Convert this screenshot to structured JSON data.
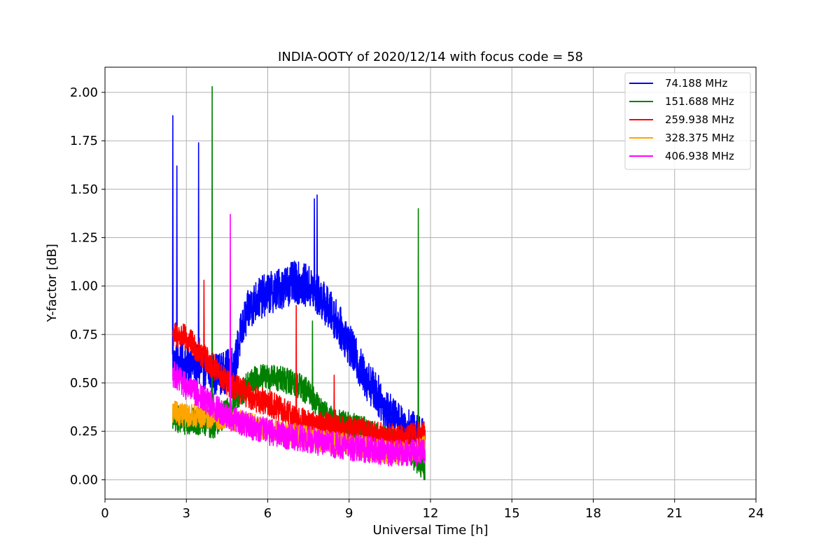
{
  "chart_data": {
    "type": "line",
    "title": "INDIA-OOTY of 2020/12/14 with focus code = 58",
    "xlabel": "Universal Time [h]",
    "ylabel": "Y-factor [dB]",
    "xlim": [
      0,
      24
    ],
    "ylim": [
      -0.1,
      2.13
    ],
    "xticks": [
      0,
      3,
      6,
      9,
      12,
      15,
      18,
      21,
      24
    ],
    "xtick_labels": [
      "0",
      "3",
      "6",
      "9",
      "12",
      "15",
      "18",
      "21",
      "24"
    ],
    "yticks": [
      0.0,
      0.25,
      0.5,
      0.75,
      1.0,
      1.25,
      1.5,
      1.75,
      2.0
    ],
    "ytick_labels": [
      "0.00",
      "0.25",
      "0.50",
      "0.75",
      "1.00",
      "1.25",
      "1.50",
      "1.75",
      "2.00"
    ],
    "grid": true,
    "legend_position": "top-right",
    "series": [
      {
        "name": "74.188 MHz",
        "color": "#0000ff",
        "noise": 0.11,
        "x": [
          2.5,
          2.8,
          3.2,
          3.6,
          4.0,
          4.4,
          4.8,
          5.0,
          5.3,
          5.6,
          6.0,
          6.5,
          7.0,
          7.5,
          8.0,
          8.5,
          9.0,
          9.5,
          10.0,
          10.3,
          10.6,
          11.0,
          11.3,
          11.6,
          11.8
        ],
        "y": [
          0.6,
          0.6,
          0.6,
          0.57,
          0.55,
          0.55,
          0.6,
          0.75,
          0.88,
          0.93,
          0.96,
          0.99,
          1.02,
          1.0,
          0.93,
          0.83,
          0.7,
          0.55,
          0.45,
          0.38,
          0.32,
          0.28,
          0.25,
          0.22,
          0.2
        ],
        "spikes": [
          [
            2.5,
            1.88
          ],
          [
            2.65,
            1.62
          ],
          [
            3.45,
            1.74
          ],
          [
            7.72,
            1.45
          ],
          [
            7.82,
            1.47
          ],
          [
            11.55,
            0.38
          ]
        ]
      },
      {
        "name": "151.688 MHz",
        "color": "#008000",
        "noise": 0.07,
        "x": [
          2.5,
          3.0,
          3.5,
          4.0,
          4.5,
          5.0,
          5.5,
          6.0,
          6.5,
          7.0,
          7.5,
          8.0,
          8.5,
          9.0,
          9.5,
          10.0,
          10.5,
          11.0,
          11.5,
          11.8
        ],
        "y": [
          0.32,
          0.3,
          0.3,
          0.28,
          0.35,
          0.45,
          0.52,
          0.53,
          0.52,
          0.5,
          0.45,
          0.35,
          0.3,
          0.28,
          0.26,
          0.23,
          0.2,
          0.18,
          0.1,
          0.05
        ],
        "spikes": [
          [
            3.95,
            2.03
          ],
          [
            7.65,
            0.82
          ],
          [
            11.55,
            1.4
          ]
        ]
      },
      {
        "name": "259.938 MHz",
        "color": "#ff0000",
        "noise": 0.07,
        "x": [
          2.5,
          3.0,
          3.5,
          4.0,
          4.5,
          5.0,
          5.5,
          6.0,
          6.5,
          7.0,
          7.5,
          8.0,
          8.5,
          9.0,
          9.5,
          10.0,
          10.5,
          11.0,
          11.5,
          11.8
        ],
        "y": [
          0.75,
          0.73,
          0.66,
          0.58,
          0.5,
          0.46,
          0.42,
          0.4,
          0.36,
          0.32,
          0.29,
          0.28,
          0.27,
          0.26,
          0.25,
          0.23,
          0.22,
          0.22,
          0.23,
          0.23
        ],
        "spikes": [
          [
            3.65,
            1.03
          ],
          [
            7.05,
            0.9
          ],
          [
            8.45,
            0.54
          ]
        ]
      },
      {
        "name": "328.375 MHz",
        "color": "#ffa500",
        "noise": 0.06,
        "x": [
          2.5,
          3.0,
          3.5,
          4.0,
          4.5,
          5.0,
          5.5,
          6.0,
          6.5,
          7.0,
          7.5,
          8.0,
          8.5,
          9.0,
          9.5,
          10.0,
          10.5,
          11.0,
          11.5,
          11.8
        ],
        "y": [
          0.35,
          0.33,
          0.33,
          0.32,
          0.32,
          0.3,
          0.28,
          0.26,
          0.24,
          0.23,
          0.22,
          0.2,
          0.19,
          0.18,
          0.17,
          0.15,
          0.14,
          0.14,
          0.15,
          0.17
        ],
        "spikes": []
      },
      {
        "name": "406.938 MHz",
        "color": "#ff00ff",
        "noise": 0.07,
        "x": [
          2.5,
          3.0,
          3.5,
          4.0,
          4.5,
          5.0,
          5.5,
          6.0,
          6.5,
          7.0,
          7.5,
          8.0,
          8.5,
          9.0,
          9.5,
          10.0,
          10.5,
          11.0,
          11.5,
          11.8
        ],
        "y": [
          0.55,
          0.48,
          0.43,
          0.38,
          0.33,
          0.3,
          0.27,
          0.25,
          0.23,
          0.22,
          0.21,
          0.19,
          0.18,
          0.17,
          0.16,
          0.15,
          0.14,
          0.14,
          0.14,
          0.15
        ],
        "spikes": [
          [
            4.62,
            1.37
          ]
        ]
      }
    ]
  }
}
